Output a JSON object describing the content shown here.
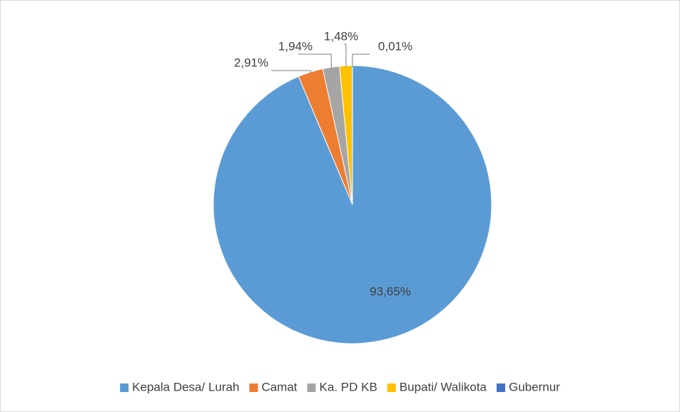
{
  "chart_data": {
    "type": "pie",
    "categories": [
      "Kepala Desa/ Lurah",
      "Camat",
      "Ka. PD KB",
      "Bupati/ Walikota",
      "Gubernur"
    ],
    "values": [
      93.65,
      2.91,
      1.94,
      1.48,
      0.01
    ],
    "value_labels": [
      "93,65%",
      "2,91%",
      "1,94%",
      "1,48%",
      "0,01%"
    ],
    "colors": [
      "#5b9bd5",
      "#ed7d31",
      "#a5a5a5",
      "#ffc000",
      "#4472c4"
    ],
    "legend": "bottom"
  }
}
